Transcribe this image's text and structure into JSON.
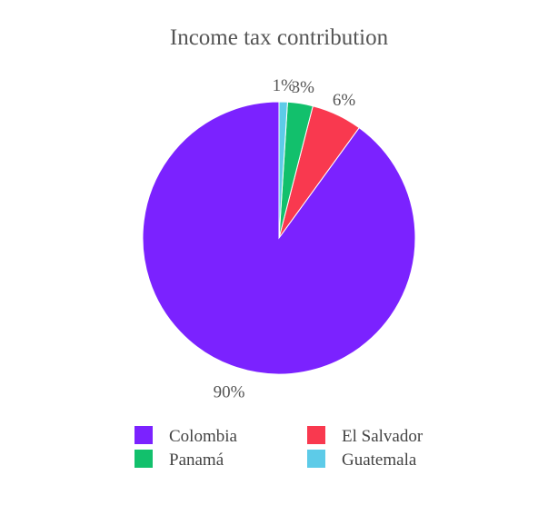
{
  "chart_data": {
    "type": "pie",
    "title": "Income tax contribution",
    "slices": [
      {
        "name": "Colombia",
        "value": 90,
        "label": "90%",
        "color": "#7b22ff"
      },
      {
        "name": "El Salvador",
        "value": 6,
        "label": "6%",
        "color": "#f9394f"
      },
      {
        "name": "Panamá",
        "value": 3,
        "label": "3%",
        "color": "#12c06c"
      },
      {
        "name": "Guatemala",
        "value": 1,
        "label": "1%",
        "color": "#5dcbe8"
      }
    ],
    "legend": {
      "placement": "bottom",
      "items": [
        {
          "label": "Colombia",
          "color": "#7b22ff"
        },
        {
          "label": "El Salvador",
          "color": "#f9394f"
        },
        {
          "label": "Panamá",
          "color": "#12c06c"
        },
        {
          "label": "Guatemala",
          "color": "#5dcbe8"
        }
      ]
    }
  }
}
